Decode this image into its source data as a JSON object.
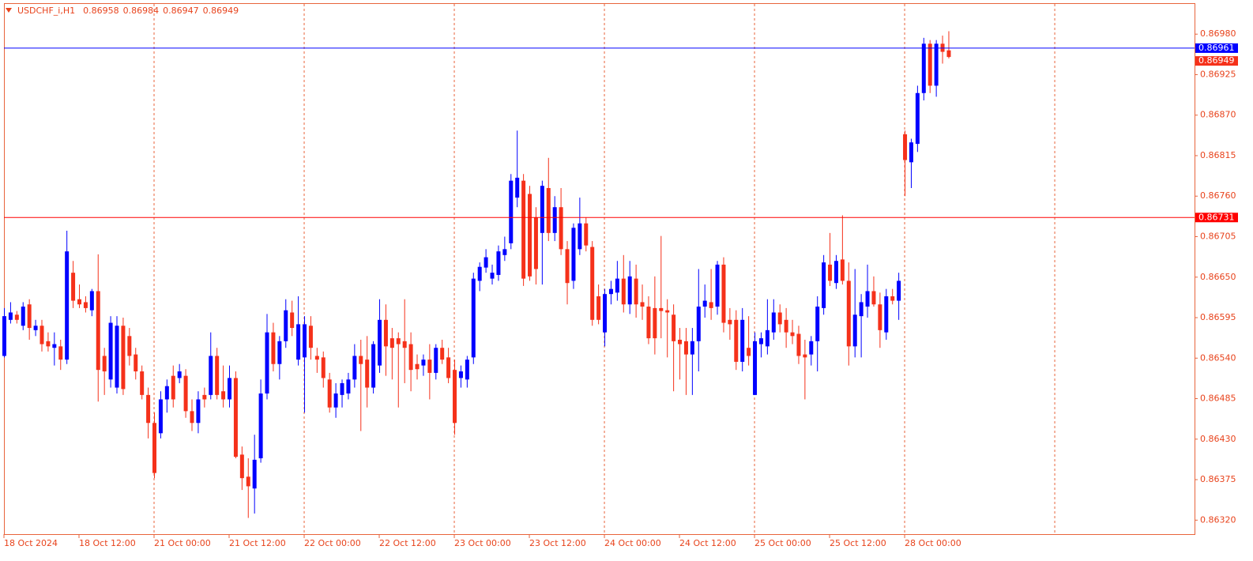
{
  "chart_data": {
    "type": "candlestick",
    "symbol": "USDCHF_i,H1",
    "up_color": "#0000ff",
    "down_color": "#f5311a",
    "categories": [
      "18 Oct 2024",
      null,
      null,
      null,
      null,
      null,
      null,
      null,
      null,
      null,
      null,
      null,
      "18 Oct 12:00",
      null,
      null,
      null,
      null,
      null,
      null,
      null,
      null,
      null,
      null,
      null,
      "21 Oct 00:00",
      null,
      null,
      null,
      null,
      null,
      null,
      null,
      null,
      null,
      null,
      null,
      "21 Oct 12:00",
      null,
      null,
      null,
      null,
      null,
      null,
      null,
      null,
      null,
      null,
      null,
      "22 Oct 00:00",
      null,
      null,
      null,
      null,
      null,
      null,
      null,
      null,
      null,
      null,
      null,
      "22 Oct 12:00",
      null,
      null,
      null,
      null,
      null,
      null,
      null,
      null,
      null,
      null,
      null,
      "23 Oct 00:00",
      null,
      null,
      null,
      null,
      null,
      null,
      null,
      null,
      null,
      null,
      null,
      "23 Oct 12:00",
      null,
      null,
      null,
      null,
      null,
      null,
      null,
      null,
      null,
      null,
      null,
      "24 Oct 00:00",
      null,
      null,
      null,
      null,
      null,
      null,
      null,
      null,
      null,
      null,
      null,
      "24 Oct 12:00",
      null,
      null,
      null,
      null,
      null,
      null,
      null,
      null,
      null,
      null,
      null,
      "25 Oct 00:00",
      null,
      null,
      null,
      null,
      null,
      null,
      null,
      null,
      null,
      null,
      null,
      "25 Oct 12:00",
      null,
      null,
      null,
      null,
      null,
      null,
      null,
      null,
      null,
      null,
      null,
      "28 Oct 00:00",
      null,
      null,
      null,
      null,
      null,
      null,
      null
    ],
    "open": [
      0.86543,
      0.86592,
      0.86599,
      0.86584,
      0.86613,
      0.86578,
      0.86584,
      0.86563,
      0.86554,
      0.86556,
      0.86538,
      0.86656,
      0.8662,
      0.86616,
      0.86605,
      0.86631,
      0.86543,
      0.86511,
      0.865,
      0.86584,
      0.8657,
      0.86545,
      0.86522,
      0.8649,
      0.86452,
      0.86438,
      0.86484,
      0.86516,
      0.86513,
      0.86516,
      0.86468,
      0.86452,
      0.8649,
      0.8649,
      0.86543,
      0.86495,
      0.86484,
      0.86513,
      0.86409,
      0.86379,
      0.86363,
      0.86404,
      0.86492,
      0.86575,
      0.86532,
      0.86563,
      0.86602,
      0.86538,
      0.86541,
      0.86584,
      0.86543,
      0.86541,
      0.86511,
      0.86473,
      0.8649,
      0.86492,
      0.86511,
      0.86543,
      0.86538,
      0.865,
      0.8653,
      0.86592,
      0.86567,
      0.86567,
      0.86563,
      0.86559,
      0.86532,
      0.8653,
      0.86538,
      0.8652,
      0.86554,
      0.86541,
      0.86524,
      0.86513,
      0.86511,
      0.86541,
      0.86645,
      0.86663,
      0.86648,
      0.86653,
      0.8668,
      0.86696,
      0.86758,
      0.86781,
      0.86763,
      0.86731,
      0.8671,
      0.86771,
      0.8671,
      0.86745,
      0.86688,
      0.86645,
      0.86688,
      0.86723,
      0.86691,
      0.86624,
      0.86575,
      0.86627,
      0.86629,
      0.86648,
      0.86613,
      0.86648,
      0.86616,
      0.8661,
      0.86608,
      0.86608,
      0.86605,
      0.86599,
      0.86565,
      0.86563,
      0.86545,
      0.86563,
      0.8661,
      0.86616,
      0.8661,
      0.86667,
      0.86592,
      0.86592,
      0.86535,
      0.86554,
      0.8649,
      0.86559,
      0.86556,
      0.86575,
      0.86602,
      0.86592,
      0.86575,
      0.86573,
      0.86545,
      0.86545,
      0.86563,
      0.86608,
      0.86667,
      0.86642,
      0.86674,
      0.86645,
      0.86556,
      0.86597,
      0.8661,
      0.86631,
      0.86613,
      0.86575,
      0.86624,
      0.86618,
      0.86844,
      0.86806,
      0.86831,
      0.869,
      0.86967,
      0.8691,
      0.86967,
      0.86958
    ],
    "high": [
      0.86608,
      0.86616,
      0.86604,
      0.86616,
      0.8662,
      0.86592,
      0.86592,
      0.86575,
      0.86575,
      0.86565,
      0.86713,
      0.86672,
      0.8664,
      0.86624,
      0.86634,
      0.86681,
      0.86554,
      0.86597,
      0.86597,
      0.86595,
      0.86581,
      0.86554,
      0.8653,
      0.865,
      0.86466,
      0.86495,
      0.86511,
      0.8653,
      0.86532,
      0.86525,
      0.86484,
      0.86495,
      0.865,
      0.86575,
      0.86554,
      0.8653,
      0.8653,
      0.86522,
      0.8642,
      0.86404,
      0.86436,
      0.86511,
      0.866,
      0.86588,
      0.8657,
      0.8662,
      0.86618,
      0.86624,
      0.86597,
      0.86597,
      0.86554,
      0.86549,
      0.8652,
      0.86506,
      0.86511,
      0.8652,
      0.86559,
      0.86565,
      0.8657,
      0.86563,
      0.8662,
      0.86613,
      0.86581,
      0.86575,
      0.8662,
      0.86575,
      0.86545,
      0.86545,
      0.86559,
      0.86559,
      0.86565,
      0.86554,
      0.86538,
      0.8653,
      0.86543,
      0.86656,
      0.8667,
      0.86688,
      0.86667,
      0.86693,
      0.86705,
      0.8679,
      0.86849,
      0.8679,
      0.86774,
      0.86745,
      0.86781,
      0.86812,
      0.8676,
      0.86771,
      0.86699,
      0.86723,
      0.86758,
      0.86731,
      0.86699,
      0.8664,
      0.86634,
      0.86645,
      0.86672,
      0.8668,
      0.86672,
      0.86667,
      0.8664,
      0.86624,
      0.86651,
      0.86706,
      0.8662,
      0.86613,
      0.86581,
      0.86581,
      0.86581,
      0.86661,
      0.8664,
      0.86661,
      0.86672,
      0.86677,
      0.86608,
      0.86605,
      0.86608,
      0.86597,
      0.86575,
      0.86575,
      0.8662,
      0.8662,
      0.86613,
      0.86608,
      0.86592,
      0.86584,
      0.86565,
      0.8657,
      0.86624,
      0.8668,
      0.8671,
      0.8668,
      0.86734,
      0.8667,
      0.86661,
      0.86627,
      0.86667,
      0.86651,
      0.86629,
      0.86634,
      0.86634,
      0.86656,
      0.86849,
      0.86838,
      0.8691,
      0.86975,
      0.86972,
      0.86972,
      0.86978,
      0.86984
    ],
    "low": [
      0.86541,
      0.86587,
      0.86587,
      0.86578,
      0.86565,
      0.8657,
      0.86549,
      0.86549,
      0.8653,
      0.86524,
      0.86532,
      0.86608,
      0.86608,
      0.86602,
      0.86597,
      0.86481,
      0.8649,
      0.865,
      0.86492,
      0.8649,
      0.8653,
      0.86511,
      0.86484,
      0.86431,
      0.86377,
      0.86431,
      0.86466,
      0.86473,
      0.86506,
      0.86459,
      0.86441,
      0.86438,
      0.86473,
      0.86484,
      0.86484,
      0.86473,
      0.86473,
      0.86404,
      0.86361,
      0.86323,
      0.86329,
      0.86398,
      0.86484,
      0.86522,
      0.86511,
      0.86554,
      0.8657,
      0.8653,
      0.86466,
      0.86538,
      0.8652,
      0.865,
      0.86466,
      0.86459,
      0.86473,
      0.86484,
      0.865,
      0.86441,
      0.86473,
      0.86492,
      0.8652,
      0.86516,
      0.86511,
      0.86473,
      0.86506,
      0.86495,
      0.86511,
      0.86516,
      0.86484,
      0.86511,
      0.86532,
      0.86506,
      0.86436,
      0.865,
      0.865,
      0.86532,
      0.86631,
      0.86656,
      0.8664,
      0.86645,
      0.86672,
      0.86688,
      0.86745,
      0.86638,
      0.86645,
      0.8664,
      0.8664,
      0.86699,
      0.86699,
      0.8668,
      0.86613,
      0.86634,
      0.8668,
      0.86685,
      0.86584,
      0.86586,
      0.86556,
      0.86613,
      0.86618,
      0.86602,
      0.866,
      0.86595,
      0.86592,
      0.86559,
      0.86545,
      0.86567,
      0.86541,
      0.86495,
      0.86511,
      0.8649,
      0.8649,
      0.86522,
      0.86595,
      0.86592,
      0.86599,
      0.86575,
      0.86565,
      0.86524,
      0.86522,
      0.8653,
      0.8649,
      0.86541,
      0.86545,
      0.86565,
      0.86575,
      0.86554,
      0.86559,
      0.86532,
      0.86484,
      0.8653,
      0.86522,
      0.86599,
      0.86638,
      0.86634,
      0.8664,
      0.8653,
      0.86541,
      0.86541,
      0.86595,
      0.8661,
      0.86554,
      0.86565,
      0.86613,
      0.86592,
      0.8676,
      0.86771,
      0.8682,
      0.8689,
      0.869,
      0.86895,
      0.8694,
      0.86947
    ],
    "close": [
      0.86597,
      0.86602,
      0.86592,
      0.8661,
      0.86581,
      0.86584,
      0.86559,
      0.86556,
      0.86559,
      0.86538,
      0.86685,
      0.86618,
      0.86613,
      0.86608,
      0.86631,
      0.86524,
      0.86522,
      0.86588,
      0.86584,
      0.86498,
      0.86543,
      0.86522,
      0.8649,
      0.86452,
      0.86384,
      0.86484,
      0.86502,
      0.86484,
      0.86522,
      0.86468,
      0.86452,
      0.86484,
      0.86484,
      0.86543,
      0.8649,
      0.86484,
      0.86513,
      0.86406,
      0.86377,
      0.86366,
      0.86402,
      0.86492,
      0.86575,
      0.86532,
      0.86563,
      0.86605,
      0.86581,
      0.86586,
      0.86586,
      0.86554,
      0.86538,
      0.86513,
      0.86473,
      0.86492,
      0.86506,
      0.86511,
      0.86543,
      0.86532,
      0.865,
      0.86559,
      0.86592,
      0.86556,
      0.86554,
      0.86559,
      0.86554,
      0.86524,
      0.86525,
      0.86538,
      0.8652,
      0.86554,
      0.86538,
      0.86513,
      0.86452,
      0.86522,
      0.86538,
      0.86648,
      0.86664,
      0.86677,
      0.86656,
      0.86685,
      0.86688,
      0.86781,
      0.86785,
      0.86648,
      0.86651,
      0.86661,
      0.86774,
      0.8671,
      0.86745,
      0.86688,
      0.86642,
      0.86717,
      0.86723,
      0.86693,
      0.86592,
      0.86592,
      0.86627,
      0.86634,
      0.86648,
      0.86613,
      0.86651,
      0.86613,
      0.8661,
      0.86567,
      0.86567,
      0.86604,
      0.86602,
      0.86563,
      0.86559,
      0.86545,
      0.86563,
      0.8661,
      0.86618,
      0.86608,
      0.86667,
      0.86588,
      0.86586,
      0.86535,
      0.86592,
      0.86543,
      0.86563,
      0.86567,
      0.86578,
      0.86602,
      0.86586,
      0.86575,
      0.8657,
      0.86543,
      0.86541,
      0.86563,
      0.8661,
      0.8667,
      0.86645,
      0.86672,
      0.86645,
      0.86556,
      0.86599,
      0.86616,
      0.86631,
      0.86613,
      0.86578,
      0.86624,
      0.86618,
      0.86645,
      0.86809,
      0.86833,
      0.869,
      0.86967,
      0.8691,
      0.86967,
      0.86956,
      0.86949
    ],
    "ylim": [
      0.86301,
      0.87021
    ],
    "yticks": [
      {
        "value": 0.8632,
        "label": "0.86320"
      },
      0.86375,
      {
        "value": 0.8643,
        "label": "0.86430"
      },
      0.86485,
      {
        "value": 0.8654,
        "label": "0.86540"
      },
      0.86595,
      {
        "value": 0.8665,
        "label": "0.86650"
      },
      0.86705,
      {
        "value": 0.8676,
        "label": "0.86760"
      },
      0.86815,
      {
        "value": 0.8687,
        "label": "0.86870"
      },
      0.86925,
      {
        "value": 0.8698,
        "label": "0.86980"
      }
    ],
    "levels": [
      {
        "value": 0.86961,
        "color": "#0000ff"
      },
      {
        "value": 0.86731,
        "color": "#ff0000"
      }
    ],
    "grid": false
  }
}
